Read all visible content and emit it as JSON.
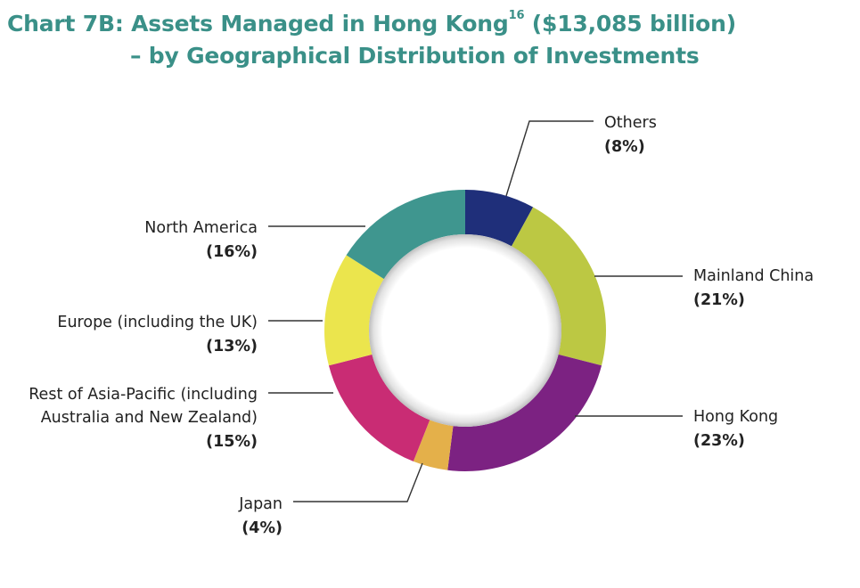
{
  "title": {
    "line1_prefix": "Chart 7B: Assets Managed in Hong Kong",
    "footnote_marker": "16",
    "line1_suffix": " ($13,085 billion)",
    "line2": "– by Geographical Distribution of Investments"
  },
  "chart_data": {
    "type": "pie",
    "variant": "donut",
    "title": "Assets Managed in Hong Kong ($13,085 billion) – by Geographical Distribution of Investments",
    "unit": "%",
    "start_angle_deg": 0,
    "direction": "clockwise",
    "slices": [
      {
        "name": "Others",
        "label_lines": [
          "Others"
        ],
        "value": 8,
        "value_label": "(8%)",
        "color": "#1f2f7a"
      },
      {
        "name": "Mainland China",
        "label_lines": [
          "Mainland China"
        ],
        "value": 21,
        "value_label": "(21%)",
        "color": "#bcc843"
      },
      {
        "name": "Hong Kong",
        "label_lines": [
          "Hong Kong"
        ],
        "value": 23,
        "value_label": "(23%)",
        "color": "#7c2282"
      },
      {
        "name": "Japan",
        "label_lines": [
          "Japan"
        ],
        "value": 4,
        "value_label": "(4%)",
        "color": "#e4b04a"
      },
      {
        "name": "Rest of Asia-Pacific (including Australia and New Zealand)",
        "label_lines": [
          "Rest of Asia-Pacific (including",
          "Australia and New Zealand)"
        ],
        "value": 15,
        "value_label": "(15%)",
        "color": "#c92c74"
      },
      {
        "name": "Europe (including the UK)",
        "label_lines": [
          "Europe (including the UK)"
        ],
        "value": 13,
        "value_label": "(13%)",
        "color": "#ebe54d"
      },
      {
        "name": "North America",
        "label_lines": [
          "North America"
        ],
        "value": 16,
        "value_label": "(16%)",
        "color": "#3f968f"
      }
    ]
  }
}
